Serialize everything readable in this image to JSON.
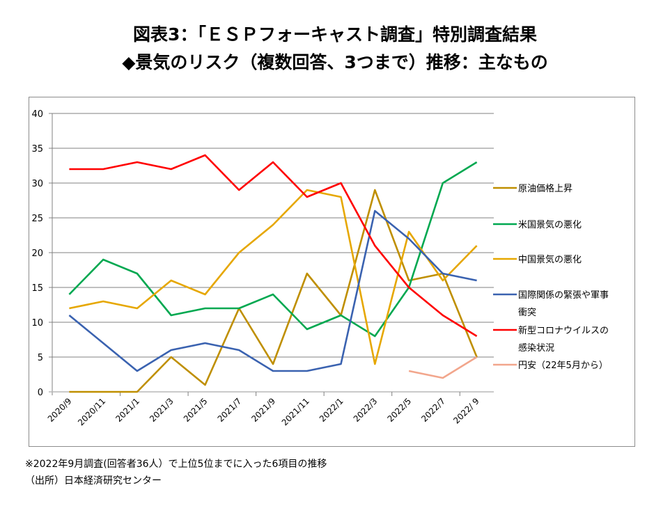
{
  "header": {
    "title_line1": "図表3：「ＥＳＰフォーキャスト調査」特別調査結果",
    "title_line2": "◆景気のリスク（複数回答、3つまで）推移：主なもの"
  },
  "notes": {
    "line1": "※2022年9月調査(回答者36人）で上位5位までに入った6項目の推移",
    "line2": "（出所）日本経済研究センター"
  },
  "chart_data": {
    "type": "line",
    "title": "景気のリスク（複数回答、3つまで）推移：主なもの",
    "xlabel": "",
    "ylabel": "",
    "ylim": [
      0,
      40
    ],
    "yticks": [
      0,
      5,
      10,
      15,
      20,
      25,
      30,
      35,
      40
    ],
    "grid": true,
    "legend_position": "right",
    "categories": [
      "2020/9",
      "2020/11",
      "2021/1",
      "2021/3",
      "2021/5",
      "2021/7",
      "2021/9",
      "2021/11",
      "2022/1",
      "2022/3",
      "2022/5",
      "2022/7",
      "2022/ 9"
    ],
    "series": [
      {
        "name": "原油価格上昇",
        "legend_lines": [
          "原油価格上昇"
        ],
        "color": "#BF8F00",
        "values": [
          0,
          0,
          0,
          5,
          1,
          12,
          4,
          17,
          11,
          29,
          16,
          17,
          5
        ]
      },
      {
        "name": "米国景気の悪化",
        "legend_lines": [
          "米国景気の悪化"
        ],
        "color": "#00A850",
        "values": [
          14,
          19,
          17,
          11,
          12,
          12,
          14,
          9,
          11,
          8,
          15,
          30,
          33
        ]
      },
      {
        "name": "中国景気の悪化",
        "legend_lines": [
          "中国景気の悪化"
        ],
        "color": "#E6A700",
        "values": [
          12,
          13,
          12,
          16,
          14,
          20,
          24,
          29,
          28,
          4,
          23,
          16,
          21
        ]
      },
      {
        "name": "国際関係の緊張や軍事衝突",
        "legend_lines": [
          "国際関係の緊張や軍事",
          "衝突"
        ],
        "color": "#3A62B0",
        "values": [
          11,
          7,
          3,
          6,
          7,
          6,
          3,
          3,
          4,
          26,
          22,
          17,
          16
        ]
      },
      {
        "name": "新型コロナウイルスの感染状況",
        "legend_lines": [
          "新型コロナウイルスの",
          "感染状況"
        ],
        "color": "#FF0000",
        "values": [
          32,
          32,
          33,
          32,
          34,
          29,
          33,
          28,
          30,
          21,
          15,
          11,
          8
        ]
      },
      {
        "name": "円安（22年5月から）",
        "legend_lines": [
          "円安（22年5月から）"
        ],
        "color": "#F2A68C",
        "values": [
          null,
          null,
          null,
          null,
          null,
          null,
          null,
          null,
          null,
          null,
          3,
          2,
          5
        ]
      }
    ]
  }
}
